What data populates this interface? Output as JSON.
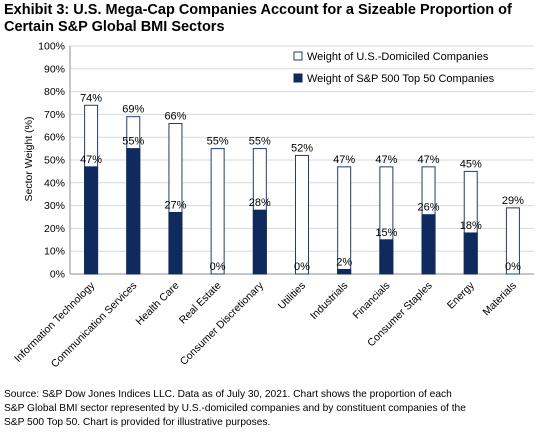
{
  "title_lines": [
    "Exhibit 3: U.S. Mega-Cap  Companies Account  for a Sizeable Proportion of",
    "Certain  S&P Global BMI Sectors"
  ],
  "footer_lines": [
    "Source: S&P Dow Jones Indices LLC.  Data as of July 30, 2021.  Chart shows the proportion of each",
    "S&P Global BMI sector represented by U.S.-domiciled companies and by constituent companies of the",
    "S&P 500 Top 50.  Chart is provided for illustrative purposes."
  ],
  "colors": {
    "us_outline": "#1f3b78",
    "sp_fill": "#0e2a5f",
    "grid": "#d9d9d9",
    "axis": "#8c8c8c"
  },
  "chart_data": {
    "type": "bar",
    "ylabel": "Sector Weight (%)",
    "ylim": [
      0,
      100
    ],
    "ytick_step": 10,
    "ytick_suffix": "%",
    "grid": true,
    "legend_position": "top-right",
    "value_label_suffix": "%",
    "categories": [
      "Information Technology",
      "Communication Services",
      "Health Care",
      "Real Estate",
      "Consumer Discretionary",
      "Utilities",
      "Industrials",
      "Financials",
      "Consumer Staples",
      "Energy",
      "Materials"
    ],
    "series": [
      {
        "name": "Weight of U.S.-Domiciled Companies",
        "style": "outline",
        "values": [
          74,
          69,
          66,
          55,
          55,
          52,
          47,
          47,
          47,
          45,
          29
        ]
      },
      {
        "name": "Weight of S&P 500 Top 50 Companies",
        "style": "filled",
        "values": [
          47,
          55,
          27,
          0,
          28,
          0,
          2,
          15,
          26,
          18,
          0
        ]
      }
    ]
  }
}
